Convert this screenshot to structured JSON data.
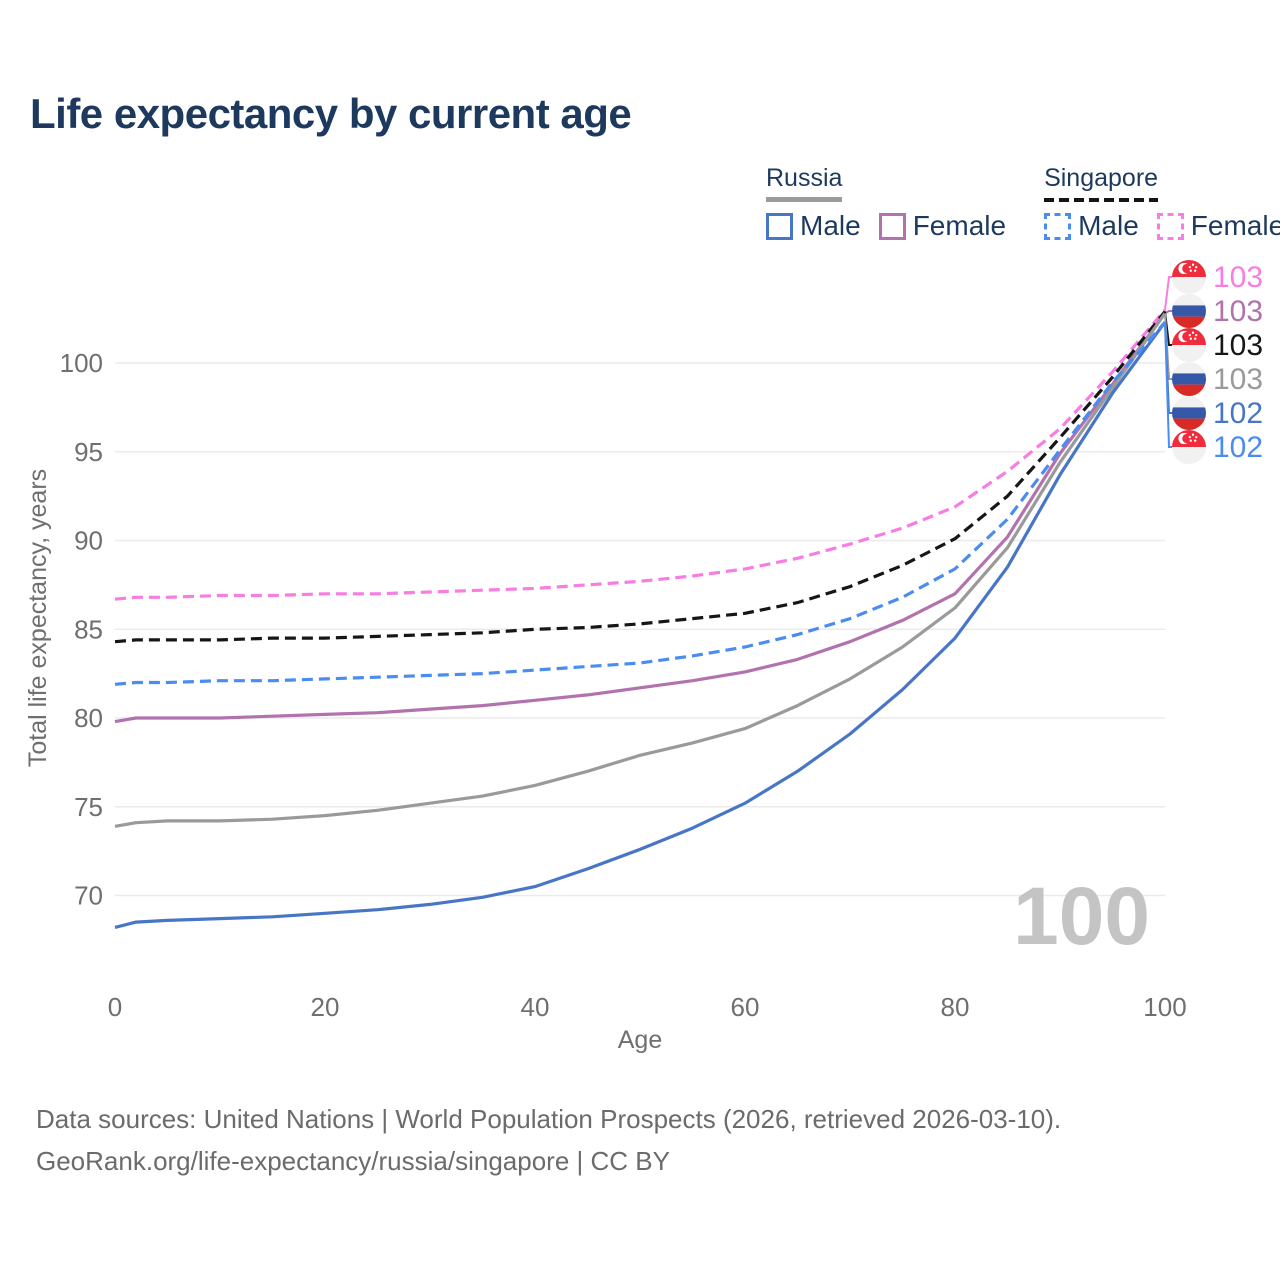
{
  "title": "Life expectancy by current age",
  "watermark": "100",
  "legend": {
    "groups": [
      {
        "label": "Russia",
        "line_style": "solid",
        "underline_color": "#9b9b9b",
        "items": [
          {
            "label": "Male",
            "color": "#4876c6",
            "dashed": false
          },
          {
            "label": "Female",
            "color": "#b272ae",
            "dashed": false
          }
        ]
      },
      {
        "label": "Singapore",
        "line_style": "dashed",
        "underline_color": "#141414",
        "items": [
          {
            "label": "Male",
            "color": "#4a8cf0",
            "dashed": true
          },
          {
            "label": "Female",
            "color": "#f87de2",
            "dashed": true
          }
        ]
      }
    ]
  },
  "flag_colors": {
    "singapore_red": "#ee2c3c",
    "russia_blue": "#3558a8",
    "russia_red": "#d92b25",
    "white": "#f1f1f1"
  },
  "chart_data": {
    "type": "line",
    "title": "Life expectancy by current age",
    "xlabel": "Age",
    "ylabel": "Total life expectancy, years",
    "xlim": [
      0,
      100
    ],
    "ylim": [
      66,
      105
    ],
    "x_ticks": [
      0,
      20,
      40,
      60,
      80,
      100
    ],
    "y_ticks": [
      70,
      75,
      80,
      85,
      90,
      95,
      100
    ],
    "grid": true,
    "legend_position": "top-right",
    "x": [
      0,
      2,
      5,
      10,
      15,
      20,
      25,
      30,
      35,
      40,
      45,
      50,
      55,
      60,
      65,
      70,
      75,
      80,
      85,
      90,
      95,
      100
    ],
    "series": [
      {
        "id": "singapore-female",
        "name": "Singapore Female",
        "color": "#f87de2",
        "dash": true,
        "flag": "singapore",
        "end_label": "103",
        "values": [
          86.7,
          86.8,
          86.8,
          86.9,
          86.9,
          87.0,
          87.0,
          87.1,
          87.2,
          87.3,
          87.5,
          87.7,
          88.0,
          88.4,
          89.0,
          89.8,
          90.7,
          91.9,
          93.9,
          96.3,
          99.5,
          103.0
        ]
      },
      {
        "id": "russia-female",
        "name": "Russia Female",
        "color": "#b272ae",
        "dash": false,
        "flag": "russia",
        "end_label": "103",
        "values": [
          79.8,
          80.0,
          80.0,
          80.0,
          80.1,
          80.2,
          80.3,
          80.5,
          80.7,
          81.0,
          81.3,
          81.7,
          82.1,
          82.6,
          83.3,
          84.3,
          85.5,
          87.0,
          90.2,
          94.9,
          98.8,
          102.8
        ]
      },
      {
        "id": "singapore-total",
        "name": "Singapore",
        "color": "#161616",
        "dash": true,
        "flag": "singapore",
        "end_label": "103",
        "values": [
          84.3,
          84.4,
          84.4,
          84.4,
          84.5,
          84.5,
          84.6,
          84.7,
          84.8,
          85.0,
          85.1,
          85.3,
          85.6,
          85.9,
          86.5,
          87.4,
          88.6,
          90.1,
          92.5,
          95.8,
          99.2,
          102.9
        ]
      },
      {
        "id": "russia-total",
        "name": "Russia",
        "color": "#9a9a9a",
        "dash": false,
        "flag": "russia",
        "end_label": "103",
        "values": [
          73.9,
          74.1,
          74.2,
          74.2,
          74.3,
          74.5,
          74.8,
          75.2,
          75.6,
          76.2,
          77.0,
          77.9,
          78.6,
          79.4,
          80.7,
          82.2,
          84.0,
          86.2,
          89.6,
          94.4,
          98.6,
          102.8
        ]
      },
      {
        "id": "russia-male",
        "name": "Russia Male",
        "color": "#4876c6",
        "dash": false,
        "flag": "russia",
        "end_label": "102",
        "values": [
          68.2,
          68.5,
          68.6,
          68.7,
          68.8,
          69.0,
          69.2,
          69.5,
          69.9,
          70.5,
          71.5,
          72.6,
          73.8,
          75.2,
          77.0,
          79.1,
          81.6,
          84.5,
          88.5,
          93.7,
          98.3,
          102.3
        ]
      },
      {
        "id": "singapore-male",
        "name": "Singapore Male",
        "color": "#4a8cf0",
        "dash": true,
        "flag": "singapore",
        "end_label": "102",
        "values": [
          81.9,
          82.0,
          82.0,
          82.1,
          82.1,
          82.2,
          82.3,
          82.4,
          82.5,
          82.7,
          82.9,
          83.1,
          83.5,
          84.0,
          84.7,
          85.6,
          86.8,
          88.4,
          91.2,
          95.1,
          98.9,
          102.3
        ]
      }
    ]
  },
  "footer": {
    "line1": "Data sources: United Nations | World Population Prospects (2026, retrieved 2026-03-10).",
    "line2": "GeoRank.org/life-expectancy/russia/singapore | CC BY"
  }
}
